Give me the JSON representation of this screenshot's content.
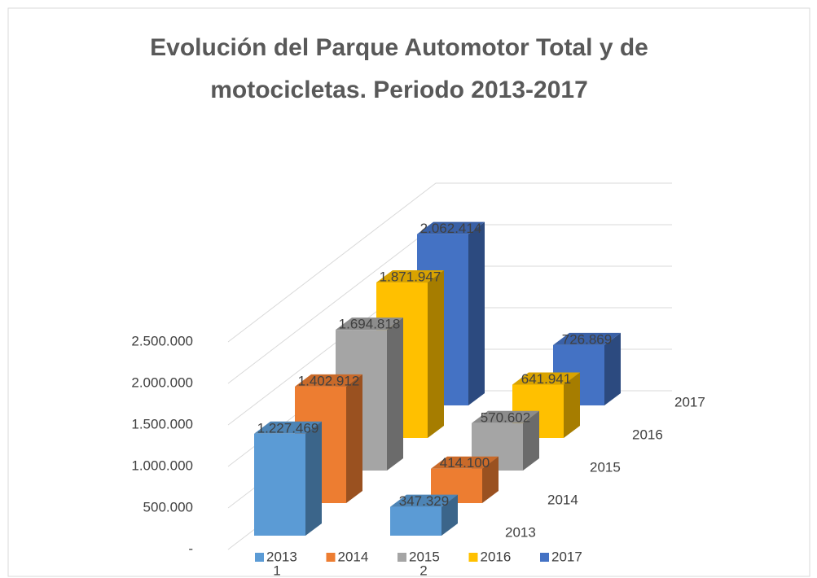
{
  "chart_data": {
    "type": "bar3d",
    "title": "Evolución del Parque Automotor Total y de motocicletas. Periodo 2013-2017",
    "categories": [
      "1",
      "2"
    ],
    "series": [
      {
        "name": "2013",
        "color": "#5b9bd5",
        "values": [
          1227469,
          347329
        ],
        "value_labels": [
          "1.227.469",
          "347.329"
        ]
      },
      {
        "name": "2014",
        "color": "#ed7d31",
        "values": [
          1402912,
          414100
        ],
        "value_labels": [
          "1.402.912",
          "414.100"
        ]
      },
      {
        "name": "2015",
        "color": "#a5a5a5",
        "values": [
          1694818,
          570602
        ],
        "value_labels": [
          "1.694.818",
          "570.602"
        ]
      },
      {
        "name": "2016",
        "color": "#ffc000",
        "values": [
          1871947,
          641941
        ],
        "value_labels": [
          "1.871.947",
          "641.941"
        ]
      },
      {
        "name": "2017",
        "color": "#4472c4",
        "values": [
          2062414,
          726869
        ],
        "value_labels": [
          "2.062.414",
          "726.869"
        ]
      }
    ],
    "ylim": [
      0,
      2500000
    ],
    "yticks": [
      {
        "value": 0,
        "label": "-"
      },
      {
        "value": 500000,
        "label": "500.000"
      },
      {
        "value": 1000000,
        "label": "1.000.000"
      },
      {
        "value": 1500000,
        "label": "1.500.000"
      },
      {
        "value": 2000000,
        "label": "2.000.000"
      },
      {
        "value": 2500000,
        "label": "2.500.000"
      }
    ],
    "grid": true,
    "legend": "bottom"
  }
}
